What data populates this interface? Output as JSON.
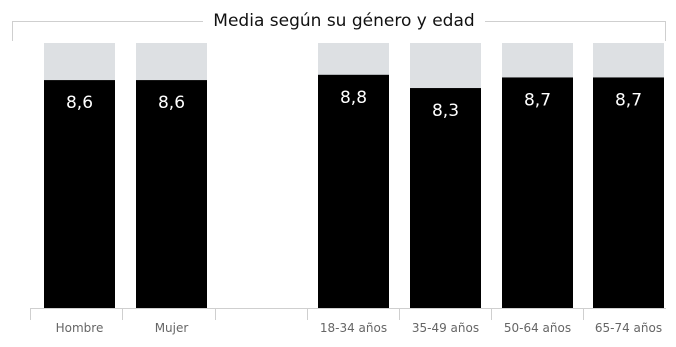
{
  "chart_data": {
    "type": "bar",
    "title": "Media según su género y edad",
    "categories": [
      "Hombre",
      "Mujer",
      "",
      "18-34 años",
      "35-49 años",
      "50-64 años",
      "65-74 años"
    ],
    "values": [
      8.6,
      8.6,
      null,
      8.8,
      8.3,
      8.7,
      8.7
    ],
    "value_labels": [
      "8,6",
      "8,6",
      "",
      "8,8",
      "8,3",
      "8,7",
      "8,7"
    ],
    "ylim": [
      0,
      10
    ],
    "grid": false,
    "colors": {
      "bar": "#000000",
      "background_bar": "#dde0e3",
      "frame": "#cfcfcf"
    }
  }
}
